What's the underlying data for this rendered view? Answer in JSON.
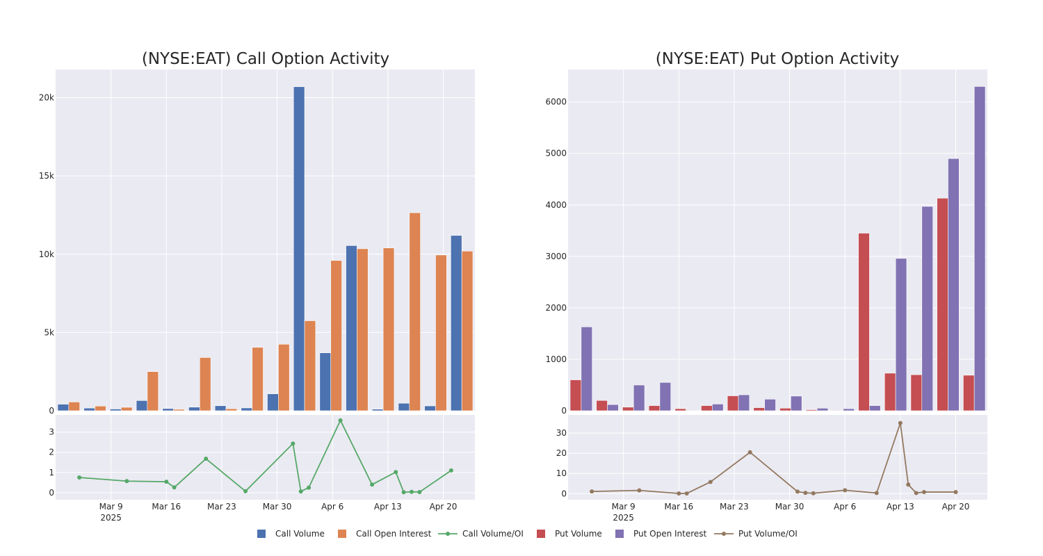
{
  "colors": {
    "call_volume": "#4c72b0",
    "call_open_interest": "#dd8452",
    "call_volume_oi": "#55a868",
    "put_volume": "#c44e52",
    "put_open_interest": "#8172b3",
    "put_volume_oi": "#937860",
    "plot_background": "#eaeaf2",
    "grid": "#ffffff"
  },
  "legend": {
    "position": "bottom-center",
    "items": [
      {
        "label": "Call Volume",
        "marker": "square",
        "color_key": "call_volume"
      },
      {
        "label": "Call Open Interest",
        "marker": "square",
        "color_key": "call_open_interest"
      },
      {
        "label": "Call Volume/OI",
        "marker": "line-dot",
        "color_key": "call_volume_oi"
      },
      {
        "label": "Put Volume",
        "marker": "square",
        "color_key": "put_volume"
      },
      {
        "label": "Put Open Interest",
        "marker": "square",
        "color_key": "put_open_interest"
      },
      {
        "label": "Put Volume/OI",
        "marker": "line-dot",
        "color_key": "put_volume_oi"
      }
    ]
  },
  "chart_data": [
    {
      "type": "bar",
      "title": "(NYSE:EAT) Call Option Activity",
      "grid": true,
      "bars": {
        "ylim": [
          0,
          21800
        ],
        "yticks": [
          0,
          5000,
          10000,
          15000,
          20000
        ],
        "ytick_labels": [
          "0",
          "5k",
          "10k",
          "15k",
          "20k"
        ],
        "series": [
          {
            "name": "Call Volume",
            "color_key": "call_volume",
            "values": [
              420,
              170,
              110,
              650,
              140,
              230,
              320,
              180,
              1080,
              20700,
              3700,
              10550,
              100,
              480,
              310,
              11200
            ]
          },
          {
            "name": "Call Open Interest",
            "color_key": "call_open_interest",
            "values": [
              560,
              300,
              220,
              2500,
              90,
              3400,
              130,
              4050,
              4250,
              5750,
              9600,
              10350,
              10400,
              12650,
              9950,
              10200
            ]
          }
        ]
      },
      "ratio": {
        "type": "line",
        "name": "Call Volume/OI",
        "color_key": "call_volume_oi",
        "ylim": [
          -0.35,
          3.85
        ],
        "yticks": [
          0,
          1,
          2,
          3
        ],
        "ytick_labels": [
          "0",
          "1",
          "2",
          "3"
        ],
        "x_range": [
          "2025-03-02",
          "2025-04-24"
        ],
        "xticks": [
          "2025-03-09",
          "2025-03-16",
          "2025-03-23",
          "2025-03-30",
          "2025-04-06",
          "2025-04-13",
          "2025-04-20"
        ],
        "xtick_labels": [
          "Mar 9",
          "Mar 16",
          "Mar 23",
          "Mar 30",
          "Apr 6",
          "Apr 13",
          "Apr 20"
        ],
        "year_label": "2025",
        "points": [
          {
            "x": "2025-03-05",
            "y": 0.75
          },
          {
            "x": "2025-03-11",
            "y": 0.57
          },
          {
            "x": "2025-03-16",
            "y": 0.54
          },
          {
            "x": "2025-03-17",
            "y": 0.26
          },
          {
            "x": "2025-03-21",
            "y": 1.68
          },
          {
            "x": "2025-03-26",
            "y": 0.07
          },
          {
            "x": "2025-04-01",
            "y": 2.43
          },
          {
            "x": "2025-04-02",
            "y": 0.06
          },
          {
            "x": "2025-04-03",
            "y": 0.25
          },
          {
            "x": "2025-04-07",
            "y": 3.58
          },
          {
            "x": "2025-04-11",
            "y": 0.4
          },
          {
            "x": "2025-04-14",
            "y": 1.02
          },
          {
            "x": "2025-04-15",
            "y": 0.02
          },
          {
            "x": "2025-04-16",
            "y": 0.04
          },
          {
            "x": "2025-04-17",
            "y": 0.03
          },
          {
            "x": "2025-04-21",
            "y": 1.1
          }
        ]
      }
    },
    {
      "type": "bar",
      "title": "(NYSE:EAT) Put Option Activity",
      "grid": true,
      "bars": {
        "ylim": [
          0,
          6630
        ],
        "yticks": [
          0,
          1000,
          2000,
          3000,
          4000,
          5000,
          6000
        ],
        "ytick_labels": [
          "0",
          "1000",
          "2000",
          "3000",
          "4000",
          "5000",
          "6000"
        ],
        "series": [
          {
            "name": "Put Volume",
            "color_key": "put_volume",
            "values": [
              600,
              200,
              70,
              100,
              40,
              100,
              290,
              60,
              50,
              20,
              10,
              3450,
              730,
              700,
              4130,
              690
            ]
          },
          {
            "name": "Put Open Interest",
            "color_key": "put_open_interest",
            "values": [
              1630,
              120,
              500,
              550,
              10,
              130,
              310,
              225,
              285,
              50,
              40,
              100,
              2960,
              3970,
              4900,
              6300
            ]
          }
        ]
      },
      "ratio": {
        "type": "line",
        "name": "Put Volume/OI",
        "color_key": "put_volume_oi",
        "ylim": [
          -3.0,
          39.0
        ],
        "yticks": [
          0,
          10,
          20,
          30
        ],
        "ytick_labels": [
          "0",
          "10",
          "20",
          "30"
        ],
        "x_range": [
          "2025-03-02",
          "2025-04-24"
        ],
        "xticks": [
          "2025-03-09",
          "2025-03-16",
          "2025-03-23",
          "2025-03-30",
          "2025-04-06",
          "2025-04-13",
          "2025-04-20"
        ],
        "xtick_labels": [
          "Mar 9",
          "Mar 16",
          "Mar 23",
          "Mar 30",
          "Apr 6",
          "Apr 13",
          "Apr 20"
        ],
        "year_label": "2025",
        "points": [
          {
            "x": "2025-03-05",
            "y": 1.1
          },
          {
            "x": "2025-03-11",
            "y": 1.6
          },
          {
            "x": "2025-03-16",
            "y": 0.1
          },
          {
            "x": "2025-03-17",
            "y": 0.1
          },
          {
            "x": "2025-03-20",
            "y": 5.8
          },
          {
            "x": "2025-03-25",
            "y": 20.5
          },
          {
            "x": "2025-03-31",
            "y": 1.0
          },
          {
            "x": "2025-04-01",
            "y": 0.4
          },
          {
            "x": "2025-04-02",
            "y": 0.2
          },
          {
            "x": "2025-04-06",
            "y": 1.7
          },
          {
            "x": "2025-04-10",
            "y": 0.3
          },
          {
            "x": "2025-04-13",
            "y": 35.0
          },
          {
            "x": "2025-04-14",
            "y": 4.5
          },
          {
            "x": "2025-04-15",
            "y": 0.3
          },
          {
            "x": "2025-04-16",
            "y": 0.8
          },
          {
            "x": "2025-04-20",
            "y": 0.8
          }
        ]
      }
    }
  ]
}
